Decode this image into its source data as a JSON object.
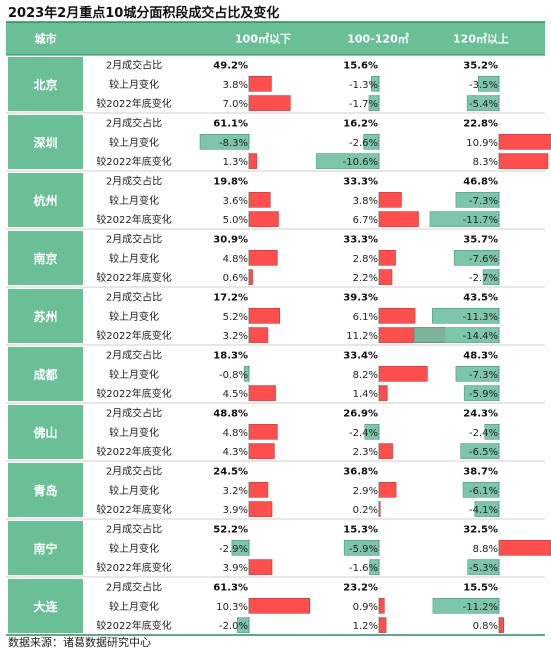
{
  "title": "2023年2月重点10城分面积段成交占比及变化",
  "source": "数据来源：诸葛数据研究中心",
  "colors": {
    "header_bg": "#6bbf96",
    "city_bg": "#6bbf96",
    "rule": "#2e8b57",
    "pos_fill": "#ff3b3b",
    "neg_fill": "#6fbfa2",
    "zero_line": "#3f8f73"
  },
  "chart_data": {
    "type": "table",
    "header": {
      "city": "城市",
      "columns": [
        "100㎡以下",
        "100-120㎡",
        "120㎡以上"
      ]
    },
    "metrics": [
      "2月成交占比",
      "较上月变化",
      "较2022年底变化"
    ],
    "cities": [
      {
        "name": "北京",
        "share": [
          "49.2%",
          "15.6%",
          "35.2%"
        ],
        "mom": [
          3.8,
          -1.3,
          -3.5
        ],
        "ytd": [
          7.0,
          -1.7,
          -5.4
        ]
      },
      {
        "name": "深圳",
        "share": [
          "61.1%",
          "16.2%",
          "22.8%"
        ],
        "mom": [
          -8.3,
          -2.6,
          10.9
        ],
        "ytd": [
          1.3,
          -10.6,
          8.3
        ]
      },
      {
        "name": "杭州",
        "share": [
          "19.8%",
          "33.3%",
          "46.8%"
        ],
        "mom": [
          3.6,
          3.8,
          -7.3
        ],
        "ytd": [
          5.0,
          6.7,
          -11.7
        ]
      },
      {
        "name": "南京",
        "share": [
          "30.9%",
          "33.3%",
          "35.7%"
        ],
        "mom": [
          4.8,
          2.8,
          -7.6
        ],
        "ytd": [
          0.6,
          2.2,
          -2.7
        ]
      },
      {
        "name": "苏州",
        "share": [
          "17.2%",
          "39.3%",
          "43.5%"
        ],
        "mom": [
          5.2,
          6.1,
          -11.3
        ],
        "ytd": [
          3.2,
          11.2,
          -14.4
        ]
      },
      {
        "name": "成都",
        "share": [
          "18.3%",
          "33.4%",
          "48.3%"
        ],
        "mom": [
          -0.8,
          8.2,
          -7.3
        ],
        "ytd": [
          4.5,
          1.4,
          -5.9
        ]
      },
      {
        "name": "佛山",
        "share": [
          "48.8%",
          "26.9%",
          "24.3%"
        ],
        "mom": [
          4.8,
          -2.4,
          -2.4
        ],
        "ytd": [
          4.3,
          2.3,
          -6.5
        ]
      },
      {
        "name": "青岛",
        "share": [
          "24.5%",
          "36.8%",
          "38.7%"
        ],
        "mom": [
          3.2,
          2.9,
          -6.1
        ],
        "ytd": [
          3.9,
          0.2,
          -4.1
        ]
      },
      {
        "name": "南宁",
        "share": [
          "52.2%",
          "15.3%",
          "32.5%"
        ],
        "mom": [
          -2.9,
          -5.9,
          8.8
        ],
        "ytd": [
          3.9,
          -1.6,
          -5.3
        ]
      },
      {
        "name": "大连",
        "share": [
          "61.3%",
          "23.2%",
          "15.5%"
        ],
        "mom": [
          10.3,
          0.9,
          -11.2
        ],
        "ytd": [
          -2.0,
          1.2,
          0.8
        ]
      }
    ]
  }
}
